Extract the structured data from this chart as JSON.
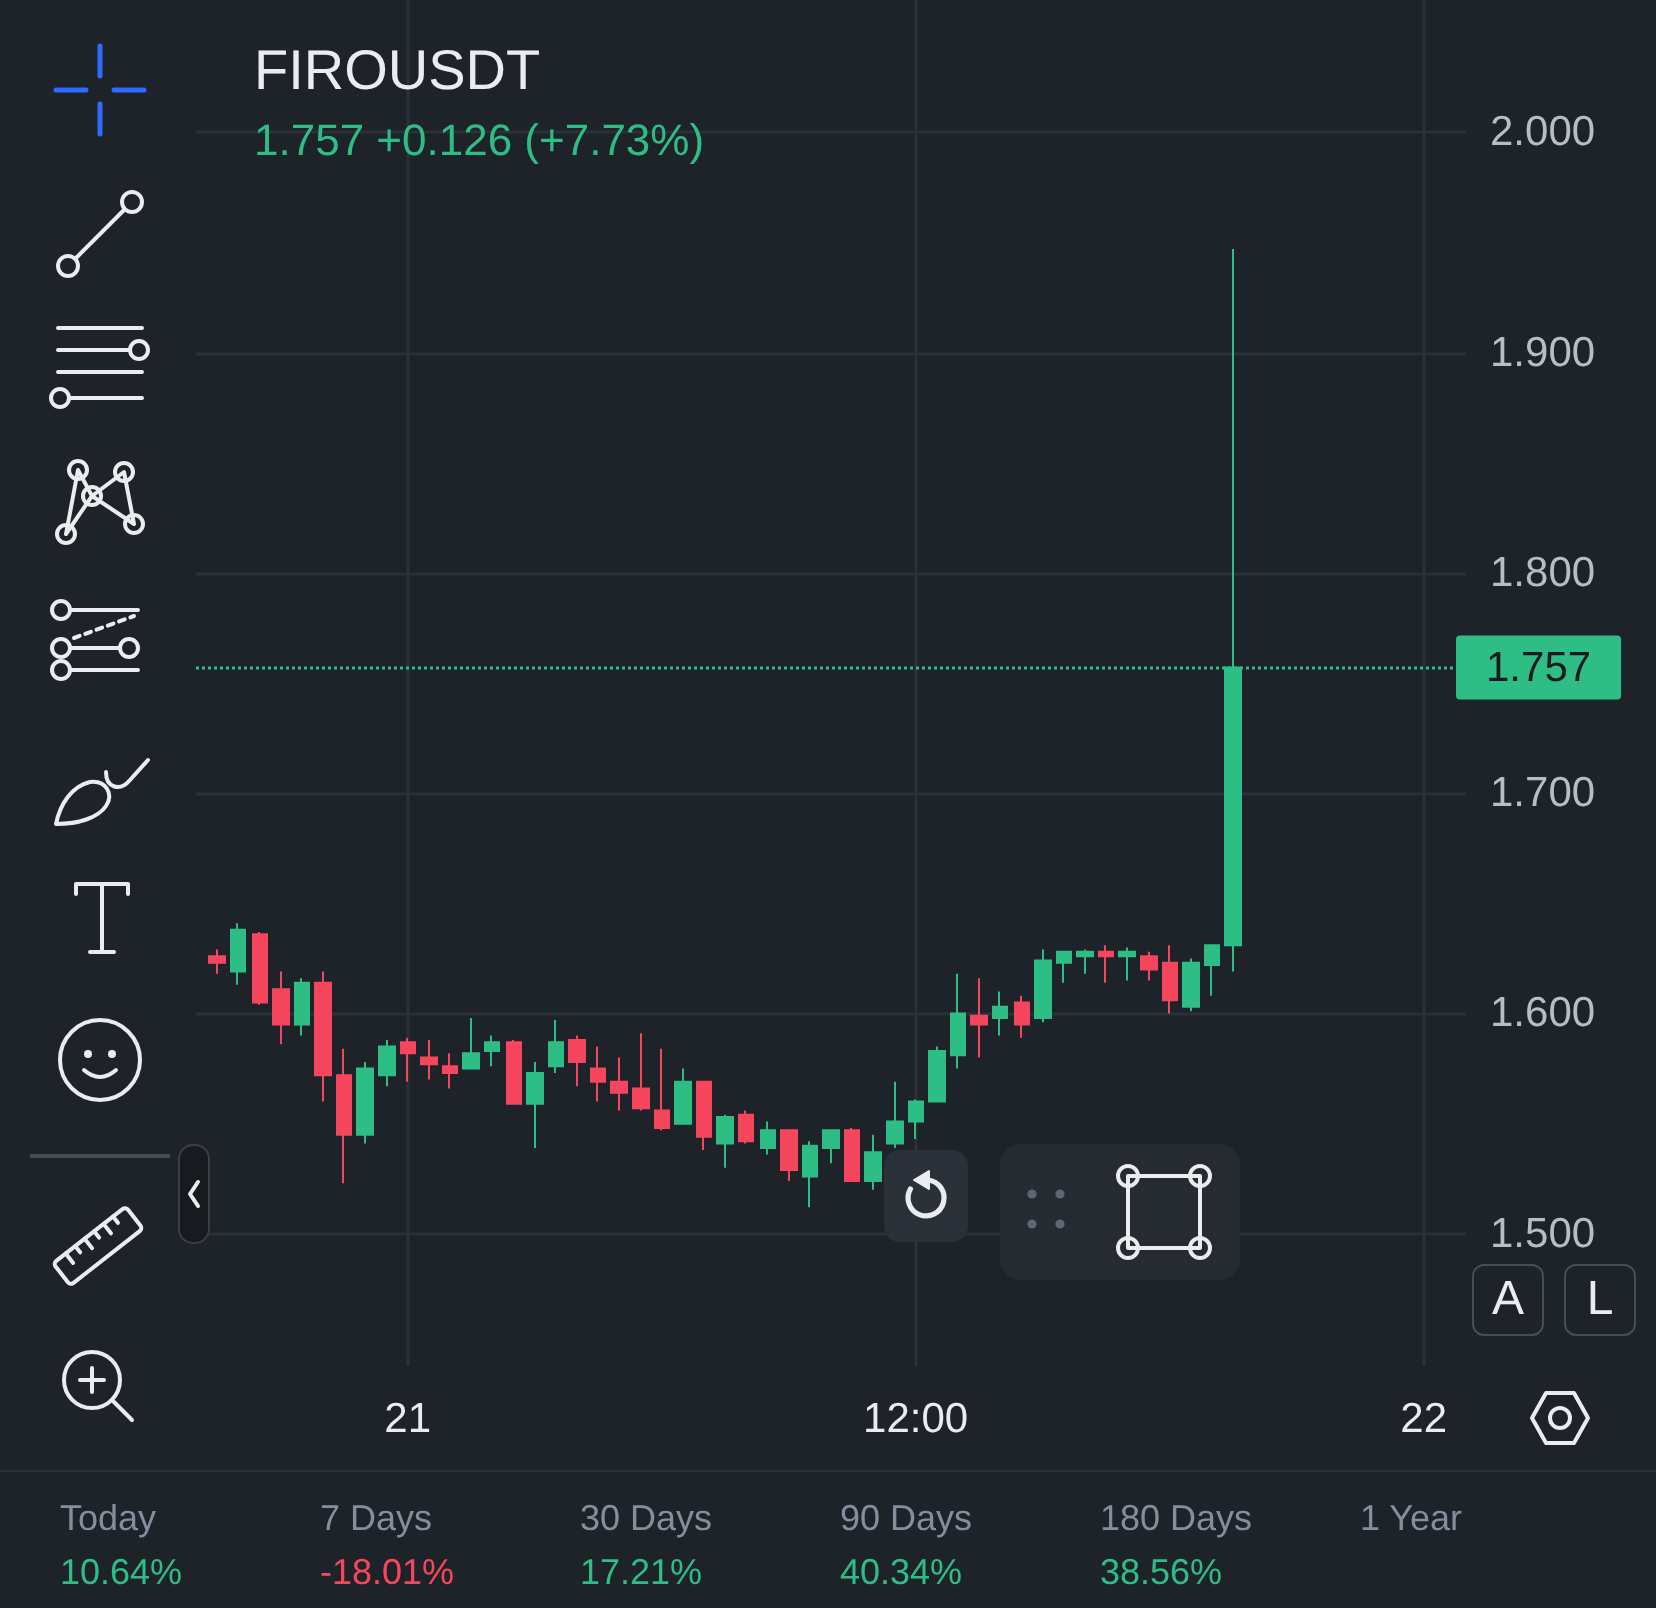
{
  "chart_data": {
    "type": "candlestick",
    "title": "FIROUSDT",
    "subtitle": "1.757 +0.126 (+7.73%)",
    "categories": [
      null,
      null,
      null,
      null,
      null,
      null,
      null,
      null,
      null,
      null,
      "21",
      null,
      null,
      null,
      null,
      null,
      null,
      null,
      null,
      null,
      null,
      null,
      null,
      null,
      null,
      null,
      null,
      null,
      null,
      null,
      null,
      null,
      null,
      null,
      "12:00",
      null,
      null,
      null,
      null,
      null,
      null,
      null,
      null,
      null,
      null,
      null,
      null,
      null,
      null,
      null,
      null,
      null,
      null,
      null,
      null,
      null,
      null,
      null,
      "22",
      null,
      null
    ],
    "ohlc": [
      null,
      [
        1.626,
        1.629,
        1.618,
        1.623
      ],
      [
        1.619,
        1.641,
        1.613,
        1.638
      ],
      [
        1.636,
        1.637,
        1.604,
        1.605
      ],
      [
        1.611,
        1.619,
        1.586,
        1.595
      ],
      [
        1.595,
        1.616,
        1.59,
        1.614
      ],
      [
        1.614,
        1.619,
        1.56,
        1.572
      ],
      [
        1.572,
        1.584,
        1.523,
        1.545
      ],
      [
        1.545,
        1.578,
        1.541,
        1.575
      ],
      [
        1.572,
        1.588,
        1.567,
        1.585
      ],
      [
        1.587,
        1.589,
        1.569,
        1.582
      ],
      [
        1.58,
        1.588,
        1.57,
        1.577
      ],
      [
        1.576,
        1.582,
        1.566,
        1.573
      ],
      [
        1.575,
        1.598,
        1.575,
        1.582
      ],
      [
        1.583,
        1.59,
        1.576,
        1.587
      ],
      [
        1.587,
        1.588,
        1.559,
        1.559
      ],
      [
        1.559,
        1.578,
        1.539,
        1.573
      ],
      [
        1.576,
        1.597,
        1.573,
        1.587
      ],
      [
        1.588,
        1.59,
        1.567,
        1.578
      ],
      [
        1.575,
        1.585,
        1.56,
        1.569
      ],
      [
        1.569,
        1.58,
        1.556,
        1.564
      ],
      [
        1.566,
        1.591,
        1.556,
        1.557
      ],
      [
        1.556,
        1.584,
        1.547,
        1.548
      ],
      [
        1.55,
        1.575,
        1.55,
        1.569
      ],
      [
        1.569,
        1.569,
        1.538,
        1.544
      ],
      [
        1.541,
        1.554,
        1.53,
        1.553
      ],
      [
        1.554,
        1.556,
        1.541,
        1.542
      ],
      [
        1.539,
        1.551,
        1.536,
        1.547
      ],
      [
        1.547,
        1.547,
        1.524,
        1.529
      ],
      [
        1.526,
        1.542,
        1.512,
        1.54
      ],
      [
        1.539,
        1.547,
        1.532,
        1.547
      ],
      [
        1.547,
        1.548,
        1.524,
        1.524
      ],
      [
        1.524,
        1.545,
        1.52,
        1.537
      ],
      [
        1.541,
        1.569,
        1.539,
        1.551
      ],
      [
        1.551,
        1.561,
        1.543,
        1.56
      ],
      [
        1.56,
        1.585,
        1.56,
        1.583
      ],
      [
        1.581,
        1.618,
        1.575,
        1.6
      ],
      [
        1.599,
        1.616,
        1.58,
        1.595
      ],
      [
        1.598,
        1.61,
        1.59,
        1.603
      ],
      [
        1.605,
        1.608,
        1.589,
        1.595
      ],
      [
        1.598,
        1.629,
        1.596,
        1.624
      ],
      [
        1.623,
        1.628,
        1.614,
        1.628
      ],
      [
        1.626,
        1.629,
        1.618,
        1.628
      ],
      [
        1.628,
        1.631,
        1.614,
        1.626
      ],
      [
        1.626,
        1.63,
        1.615,
        1.628
      ],
      [
        1.626,
        1.628,
        1.615,
        1.62
      ],
      [
        1.623,
        1.631,
        1.6,
        1.606
      ],
      [
        1.603,
        1.625,
        1.601,
        1.623
      ],
      [
        1.622,
        1.631,
        1.608,
        1.631
      ],
      [
        1.631,
        1.947,
        1.619,
        1.757
      ],
      null,
      null,
      null,
      null,
      null,
      null,
      null,
      null,
      null,
      null,
      null
    ],
    "colors": [
      null,
      "#f6465d",
      "#2ebd85",
      "#f6465d",
      "#f6465d",
      "#2ebd85",
      "#f6465d",
      "#f6465d",
      "#2ebd85",
      "#2ebd85",
      "#f6465d",
      "#f6465d",
      "#f6465d",
      "#2ebd85",
      "#2ebd85",
      "#f6465d",
      "#2ebd85",
      "#2ebd85",
      "#f6465d",
      "#f6465d",
      "#f6465d",
      "#f6465d",
      "#f6465d",
      "#2ebd85",
      "#f6465d",
      "#2ebd85",
      "#f6465d",
      "#2ebd85",
      "#f6465d",
      "#2ebd85",
      "#2ebd85",
      "#f6465d",
      "#2ebd85",
      "#2ebd85",
      "#2ebd85",
      "#2ebd85",
      "#2ebd85",
      "#f6465d",
      "#2ebd85",
      "#f6465d",
      "#2ebd85",
      "#2ebd85",
      "#2ebd85",
      "#f6465d",
      "#2ebd85",
      "#f6465d",
      "#f6465d",
      "#2ebd85",
      "#2ebd85",
      "#2ebd85",
      null,
      null,
      null,
      null,
      null,
      null,
      null,
      null,
      null,
      null,
      null
    ],
    "ylim": [
      1.44,
      2.06
    ],
    "yticks": [
      {
        "value": 1.5,
        "label": "1.500"
      },
      {
        "value": 1.6,
        "label": "1.600"
      },
      {
        "value": 1.7,
        "label": "1.700"
      },
      {
        "value": 1.8,
        "label": "1.800"
      },
      {
        "value": 1.9,
        "label": "1.900"
      },
      {
        "value": 2.0,
        "label": "2.000"
      }
    ],
    "grid": true,
    "ref_lines": [
      {
        "axis": "y",
        "value": 1.757,
        "label": "1.757",
        "color": "#2ebd85",
        "line_style": "dotted"
      }
    ],
    "annotations": [
      "Today",
      "10.64%",
      "7 Days",
      "-18.01%",
      "30 Days",
      "17.21%",
      "90 Days",
      "40.34%",
      "180 Days",
      "38.56%",
      "1 Year",
      "A",
      "L"
    ]
  }
}
